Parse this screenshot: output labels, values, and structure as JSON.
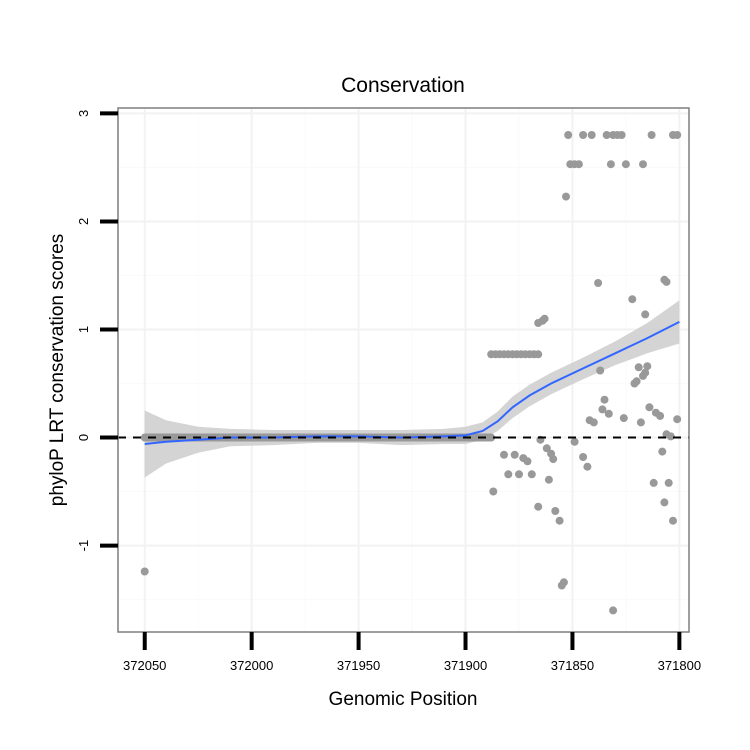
{
  "chart_data": {
    "type": "scatter",
    "title": "Conservation",
    "xlabel": "Genomic Position",
    "ylabel": "phyloP LRT conservation scores",
    "x_reversed": true,
    "xlim": [
      372062.5,
      371795.5
    ],
    "ylim": [
      -1.8,
      3.05
    ],
    "x_ticks": [
      372050,
      372000,
      371950,
      371900,
      371850,
      371800
    ],
    "x_tick_labels": [
      "372050",
      "372000",
      "371950",
      "371900",
      "371850",
      "371800"
    ],
    "y_ticks": [
      -1,
      0,
      1,
      2,
      3
    ],
    "y_tick_labels": [
      "-1",
      "0",
      "1",
      "2",
      "3"
    ],
    "reference_line": {
      "y": 0,
      "style": "dashed"
    },
    "colors": {
      "points": "#999999",
      "smooth": "#3366ff",
      "ribbon": "#cccccc",
      "panel_border": "#7f7f7f",
      "grid_major": "#f2f2f2",
      "grid_minor": "#fafafa"
    },
    "zero_run": {
      "x_from": 372050,
      "x_to": 371888,
      "y": 0
    },
    "points": [
      {
        "x": 372050,
        "y": -1.24
      },
      {
        "x": 371888,
        "y": 0.77
      },
      {
        "x": 371886,
        "y": 0.77
      },
      {
        "x": 371884,
        "y": 0.77
      },
      {
        "x": 371882,
        "y": 0.77
      },
      {
        "x": 371880,
        "y": 0.77
      },
      {
        "x": 371878,
        "y": 0.77
      },
      {
        "x": 371876,
        "y": 0.77
      },
      {
        "x": 371874,
        "y": 0.77
      },
      {
        "x": 371872,
        "y": 0.77
      },
      {
        "x": 371870,
        "y": 0.77
      },
      {
        "x": 371868,
        "y": 0.77
      },
      {
        "x": 371866,
        "y": 0.77
      },
      {
        "x": 371887,
        "y": -0.5
      },
      {
        "x": 371882,
        "y": -0.16
      },
      {
        "x": 371880,
        "y": -0.34
      },
      {
        "x": 371877,
        "y": -0.16
      },
      {
        "x": 371875,
        "y": -0.34
      },
      {
        "x": 371873,
        "y": -0.19
      },
      {
        "x": 371871,
        "y": -0.22
      },
      {
        "x": 371869,
        "y": -0.34
      },
      {
        "x": 371866,
        "y": -0.64
      },
      {
        "x": 371866,
        "y": 1.06
      },
      {
        "x": 371864,
        "y": 1.08
      },
      {
        "x": 371863,
        "y": 1.1
      },
      {
        "x": 371865,
        "y": -0.02
      },
      {
        "x": 371862,
        "y": -0.1
      },
      {
        "x": 371861,
        "y": -0.39
      },
      {
        "x": 371860,
        "y": -0.15
      },
      {
        "x": 371859,
        "y": -0.2
      },
      {
        "x": 371858,
        "y": -0.68
      },
      {
        "x": 371856,
        "y": -0.77
      },
      {
        "x": 371855,
        "y": -1.37
      },
      {
        "x": 371854,
        "y": -1.34
      },
      {
        "x": 371853,
        "y": 2.23
      },
      {
        "x": 371852,
        "y": 2.8
      },
      {
        "x": 371851,
        "y": 2.53
      },
      {
        "x": 371849,
        "y": 2.53
      },
      {
        "x": 371847,
        "y": 2.53
      },
      {
        "x": 371845,
        "y": 2.8
      },
      {
        "x": 371841,
        "y": 2.8
      },
      {
        "x": 371849,
        "y": -0.04
      },
      {
        "x": 371845,
        "y": -0.18
      },
      {
        "x": 371843,
        "y": -0.27
      },
      {
        "x": 371842,
        "y": 0.16
      },
      {
        "x": 371840,
        "y": 0.14
      },
      {
        "x": 371838,
        "y": 1.43
      },
      {
        "x": 371837,
        "y": 0.62
      },
      {
        "x": 371836,
        "y": 0.26
      },
      {
        "x": 371835,
        "y": 0.35
      },
      {
        "x": 371833,
        "y": 0.22
      },
      {
        "x": 371834,
        "y": 2.8
      },
      {
        "x": 371832,
        "y": 2.53
      },
      {
        "x": 371831,
        "y": 2.8
      },
      {
        "x": 371829,
        "y": 2.8
      },
      {
        "x": 371827,
        "y": 2.8
      },
      {
        "x": 371825,
        "y": 2.53
      },
      {
        "x": 371831,
        "y": -1.6
      },
      {
        "x": 371826,
        "y": 0.18
      },
      {
        "x": 371822,
        "y": 1.28
      },
      {
        "x": 371821,
        "y": 0.5
      },
      {
        "x": 371820,
        "y": 0.52
      },
      {
        "x": 371819,
        "y": 0.65
      },
      {
        "x": 371817,
        "y": 2.53
      },
      {
        "x": 371817,
        "y": 0.57
      },
      {
        "x": 371816,
        "y": 0.6
      },
      {
        "x": 371815,
        "y": 0.66
      },
      {
        "x": 371818,
        "y": 0.14
      },
      {
        "x": 371816,
        "y": 1.14
      },
      {
        "x": 371814,
        "y": 0.28
      },
      {
        "x": 371813,
        "y": 2.8
      },
      {
        "x": 371812,
        "y": -0.42
      },
      {
        "x": 371811,
        "y": 0.23
      },
      {
        "x": 371809,
        "y": 0.2
      },
      {
        "x": 371808,
        "y": -0.13
      },
      {
        "x": 371807,
        "y": -0.6
      },
      {
        "x": 371806,
        "y": 0.03
      },
      {
        "x": 371807,
        "y": 1.46
      },
      {
        "x": 371806,
        "y": 1.44
      },
      {
        "x": 371805,
        "y": -0.42
      },
      {
        "x": 371804,
        "y": 0.01
      },
      {
        "x": 371803,
        "y": -0.77
      },
      {
        "x": 371803,
        "y": 2.8
      },
      {
        "x": 371801,
        "y": 2.8
      },
      {
        "x": 371801,
        "y": 0.17
      }
    ],
    "smooth": [
      {
        "x": 372050,
        "y": -0.06,
        "se": 0.31
      },
      {
        "x": 372040,
        "y": -0.04,
        "se": 0.2
      },
      {
        "x": 372025,
        "y": -0.02,
        "se": 0.12
      },
      {
        "x": 372010,
        "y": 0.0,
        "se": 0.08
      },
      {
        "x": 371990,
        "y": 0.0,
        "se": 0.07
      },
      {
        "x": 371970,
        "y": 0.01,
        "se": 0.06
      },
      {
        "x": 371950,
        "y": 0.01,
        "se": 0.06
      },
      {
        "x": 371930,
        "y": 0.0,
        "se": 0.07
      },
      {
        "x": 371910,
        "y": 0.01,
        "se": 0.07
      },
      {
        "x": 371900,
        "y": 0.02,
        "se": 0.08
      },
      {
        "x": 371892,
        "y": 0.06,
        "se": 0.08
      },
      {
        "x": 371885,
        "y": 0.15,
        "se": 0.09
      },
      {
        "x": 371878,
        "y": 0.28,
        "se": 0.1
      },
      {
        "x": 371870,
        "y": 0.39,
        "se": 0.1
      },
      {
        "x": 371860,
        "y": 0.5,
        "se": 0.1
      },
      {
        "x": 371845,
        "y": 0.64,
        "se": 0.1
      },
      {
        "x": 371830,
        "y": 0.78,
        "se": 0.11
      },
      {
        "x": 371815,
        "y": 0.92,
        "se": 0.14
      },
      {
        "x": 371800,
        "y": 1.07,
        "se": 0.2
      }
    ]
  }
}
